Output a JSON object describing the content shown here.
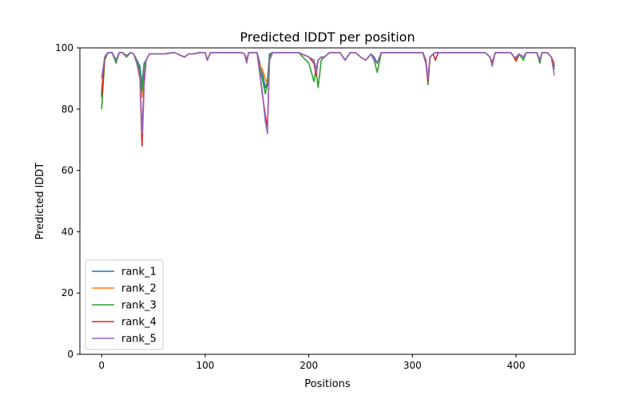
{
  "chart_data": {
    "type": "line",
    "title": "Predicted lDDT per position",
    "xlabel": "Positions",
    "ylabel": "Predicted lDDT",
    "xlim": [
      -21,
      457
    ],
    "ylim": [
      0,
      100
    ],
    "xticks": [
      0,
      100,
      200,
      300,
      400
    ],
    "yticks": [
      0,
      20,
      40,
      60,
      80,
      100
    ],
    "grid": false,
    "legend_position": "lower-left",
    "x": [
      0,
      3,
      6,
      10,
      14,
      17,
      20,
      24,
      28,
      31,
      34,
      37,
      39,
      41,
      43,
      46,
      50,
      55,
      60,
      70,
      80,
      84,
      88,
      95,
      100,
      102,
      105,
      115,
      125,
      135,
      138,
      140,
      142,
      145,
      150,
      152,
      155,
      158,
      160,
      162,
      165,
      170,
      180,
      190,
      200,
      205,
      207,
      209,
      212,
      215,
      220,
      225,
      230,
      235,
      240,
      245,
      250,
      255,
      260,
      263,
      266,
      270,
      275,
      280,
      290,
      300,
      310,
      313,
      315,
      317,
      320,
      322,
      325,
      330,
      340,
      350,
      360,
      370,
      375,
      377,
      380,
      390,
      395,
      398,
      400,
      403,
      407,
      410,
      415,
      420,
      423,
      425,
      430,
      434,
      437
    ],
    "series": [
      {
        "name": "rank_1",
        "color": "#1f77b4",
        "values": [
          85,
          97,
          98.5,
          98.5,
          96,
          98.5,
          98.5,
          97.5,
          98.5,
          98,
          96,
          94,
          88,
          95,
          96,
          98,
          98,
          98,
          98,
          98.5,
          97,
          98,
          98,
          98.5,
          98.5,
          96,
          98.5,
          98.5,
          98.5,
          98.5,
          98,
          96,
          98.5,
          98.5,
          98.5,
          96,
          92,
          87,
          89,
          98,
          98.5,
          98.5,
          98.5,
          98.5,
          97,
          96,
          93,
          96,
          97,
          97,
          98.5,
          98.5,
          98.5,
          96,
          98.5,
          98.5,
          97,
          96,
          98,
          97,
          95,
          98.5,
          98.5,
          98.5,
          98.5,
          98.5,
          98.5,
          96,
          90,
          97,
          98,
          98.5,
          98.5,
          98.5,
          98.5,
          98.5,
          98.5,
          98.5,
          97,
          95,
          98.5,
          98.5,
          98.5,
          97,
          97,
          98,
          97,
          98.5,
          98.5,
          98.5,
          96,
          98.5,
          98.5,
          97,
          94
        ]
      },
      {
        "name": "rank_2",
        "color": "#ff7f0e",
        "values": [
          86,
          97,
          98.5,
          98.5,
          96,
          98.5,
          98.5,
          97.5,
          98.5,
          98,
          96,
          92,
          84,
          94,
          96,
          98,
          98,
          98,
          98,
          98.5,
          97,
          98,
          98,
          98.5,
          98.5,
          96,
          98.5,
          98.5,
          98.5,
          98.5,
          98,
          96,
          98.5,
          98.5,
          98.5,
          95,
          93,
          90,
          88,
          97,
          98.5,
          98.5,
          98.5,
          98.5,
          97,
          95,
          92,
          96,
          97,
          97,
          98.5,
          98.5,
          98.5,
          96,
          98.5,
          98.5,
          97,
          96,
          98,
          96,
          95,
          98.5,
          98.5,
          98.5,
          98.5,
          98.5,
          98.5,
          96,
          90,
          97,
          98,
          98.5,
          98.5,
          98.5,
          98.5,
          98.5,
          98.5,
          98.5,
          97,
          95,
          98.5,
          98.5,
          98.5,
          97,
          95.5,
          98,
          97,
          98.5,
          98.5,
          98.5,
          96,
          98.5,
          98.5,
          97,
          95
        ]
      },
      {
        "name": "rank_3",
        "color": "#2ca02c",
        "values": [
          80,
          96,
          98.5,
          98.5,
          95,
          98.5,
          98.5,
          97,
          98.5,
          98,
          96,
          93,
          86,
          94,
          96,
          98,
          98,
          98,
          98,
          98.5,
          97,
          98,
          98,
          98.5,
          98.5,
          96,
          98.5,
          98.5,
          98.5,
          98.5,
          98,
          96,
          98.5,
          98.5,
          98.5,
          94,
          90,
          85,
          88,
          97,
          98.5,
          98.5,
          98.5,
          98.5,
          95,
          89,
          93,
          87,
          96,
          97,
          98.5,
          98.5,
          98.5,
          96,
          98.5,
          98.5,
          97,
          96,
          98,
          96,
          92,
          98.5,
          98.5,
          98.5,
          98.5,
          98.5,
          98.5,
          96,
          88,
          97,
          98,
          98.5,
          98.5,
          98.5,
          98.5,
          98.5,
          98.5,
          98.5,
          97,
          95,
          98.5,
          98.5,
          98.5,
          97,
          96,
          98,
          96,
          98.5,
          98.5,
          98.5,
          95,
          98.5,
          98.5,
          97,
          93
        ]
      },
      {
        "name": "rank_4",
        "color": "#d62728",
        "values": [
          84,
          97,
          98.5,
          98.5,
          96,
          98.5,
          98.5,
          97.5,
          98.5,
          98,
          95,
          90,
          68,
          88,
          96,
          98,
          98,
          98,
          98,
          98.5,
          97,
          98,
          98,
          98.5,
          98.5,
          96,
          98.5,
          98.5,
          98.5,
          98.5,
          98,
          96,
          98.5,
          98.5,
          98.5,
          94,
          85,
          78,
          74,
          96,
          98.5,
          98.5,
          98.5,
          98.5,
          97,
          95,
          91,
          96,
          97,
          97,
          98.5,
          98.5,
          98.5,
          96,
          98.5,
          98.5,
          97,
          96,
          98,
          96,
          95,
          98.5,
          98.5,
          98.5,
          98.5,
          98.5,
          98.5,
          95,
          89,
          97,
          98,
          96,
          98.5,
          98.5,
          98.5,
          98.5,
          98.5,
          98.5,
          97,
          95,
          98.5,
          98.5,
          98.5,
          97,
          96,
          98,
          97,
          98.5,
          98.5,
          98.5,
          96,
          98.5,
          98.5,
          97,
          94
        ]
      },
      {
        "name": "rank_5",
        "color": "#9467bd",
        "values": [
          90,
          97,
          98.5,
          98.5,
          96,
          98.5,
          98.5,
          97.5,
          98.5,
          98,
          95,
          91,
          72,
          90,
          96,
          98,
          98,
          98,
          98,
          98.5,
          97,
          98,
          98,
          98.5,
          98.5,
          96,
          98.5,
          98.5,
          98.5,
          98.5,
          98,
          95,
          98.5,
          98.5,
          98.5,
          93,
          86,
          76,
          72,
          96,
          98.5,
          98.5,
          98.5,
          98.5,
          97,
          96,
          92,
          96,
          97,
          97,
          98.5,
          98.5,
          98.5,
          96,
          98.5,
          98.5,
          97,
          96,
          98,
          96,
          95,
          98.5,
          98.5,
          98.5,
          98.5,
          98.5,
          98.5,
          96,
          90,
          97,
          98,
          98.5,
          98.5,
          98.5,
          98.5,
          98.5,
          98.5,
          98.5,
          97,
          94,
          98.5,
          98.5,
          98.5,
          97,
          97,
          98,
          97,
          98.5,
          98.5,
          98.5,
          96,
          98.5,
          98.5,
          97,
          91
        ]
      }
    ]
  }
}
